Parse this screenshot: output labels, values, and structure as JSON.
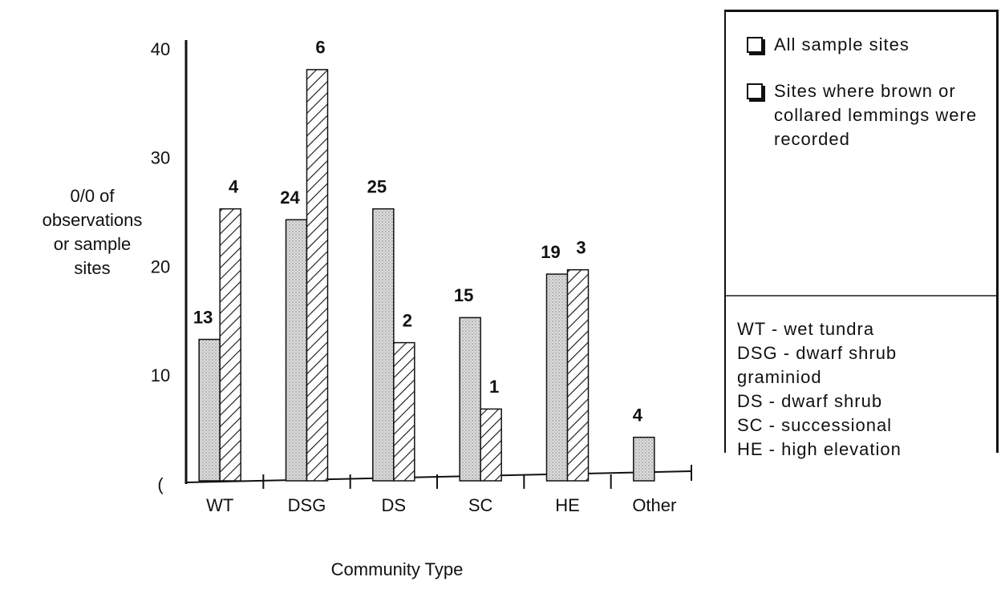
{
  "chart_data": {
    "type": "bar",
    "x_label": "Community Type",
    "y_label": "0/0 of observations or sample sites",
    "categories": [
      "WT",
      "DSG",
      "DS",
      "SC",
      "HE",
      "Other"
    ],
    "series": [
      {
        "name": "All sample sites",
        "color": "#dcdcdc",
        "pattern": "dots",
        "values": [
          13,
          24,
          25,
          15,
          19,
          4
        ]
      },
      {
        "name": "Sites where brown or collared lemmings were recorded",
        "color": "#ffffff",
        "pattern": "hatch",
        "values": [
          25,
          37.8,
          12.7,
          6.6,
          19.4,
          null
        ],
        "counts": [
          4,
          6,
          2,
          1,
          3,
          null
        ]
      }
    ],
    "ylim": [
      0,
      40
    ],
    "yticks": [
      {
        "value": 0,
        "label": "("
      },
      10,
      20,
      30,
      40
    ],
    "grid": false,
    "abbreviations": [
      "WT - wet tundra",
      "DSG - dwarf shrub graminiod",
      "DS - dwarf shrub",
      "SC - successional",
      "HE - high elevation"
    ]
  }
}
